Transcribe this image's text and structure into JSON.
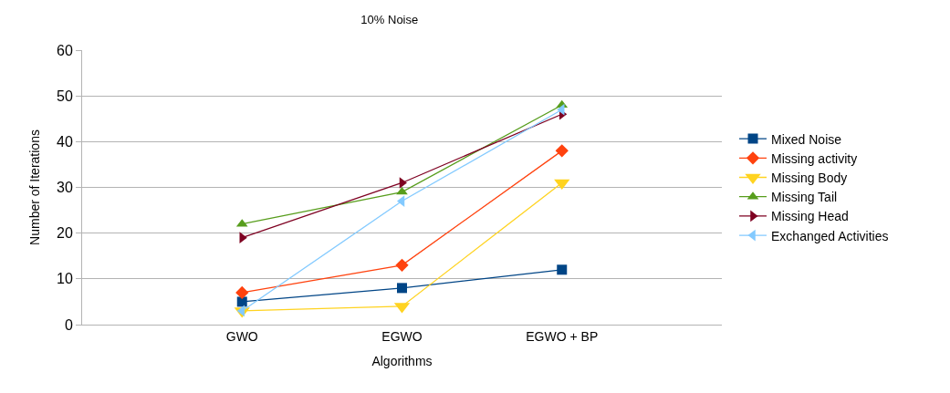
{
  "chart_data": {
    "type": "line",
    "title": "10% Noise",
    "xlabel": "Algorithms",
    "ylabel": "Number of Iterations",
    "categories": [
      "GWO",
      "EGWO",
      "EGWO + BP"
    ],
    "series": [
      {
        "name": "Mixed Noise",
        "color": "#004586",
        "marker": "square",
        "values": [
          5,
          8,
          12
        ]
      },
      {
        "name": "Missing activity",
        "color": "#ff420e",
        "marker": "diamond",
        "values": [
          7,
          13,
          38
        ]
      },
      {
        "name": "Missing Body",
        "color": "#ffd320",
        "marker": "triangle-down",
        "values": [
          3,
          4,
          31
        ]
      },
      {
        "name": "Missing Tail",
        "color": "#579d1c",
        "marker": "triangle",
        "values": [
          22,
          29,
          48
        ]
      },
      {
        "name": "Missing Head",
        "color": "#7e0021",
        "marker": "triangle-right",
        "values": [
          19,
          31,
          46
        ]
      },
      {
        "name": "Exchanged Activities",
        "color": "#83caff",
        "marker": "triangle-left",
        "values": [
          3,
          27,
          47
        ]
      }
    ],
    "ylim": [
      0,
      60
    ],
    "yticks": [
      0,
      10,
      20,
      30,
      40,
      50,
      60
    ],
    "grid": "y",
    "legend": "right",
    "line_style": "solid"
  }
}
